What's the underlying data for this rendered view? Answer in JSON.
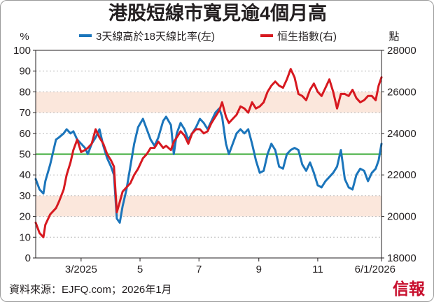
{
  "colors": {
    "breadth": "#1b75bb",
    "hsi": "#d71920",
    "threshold_line": "#3aaa35",
    "band": "#fbe7dc",
    "grid": "#b9b9b9",
    "axis": "#231f20",
    "brand": "#c8102e"
  },
  "chart_data": {
    "type": "line",
    "title": "港股短線市寬見逾4個月高",
    "left_axis": {
      "unit_label": "%",
      "ylim": [
        0,
        100
      ],
      "ticks": [
        "0",
        "10",
        "20",
        "30",
        "40",
        "50",
        "60",
        "70",
        "80",
        "90",
        "100"
      ]
    },
    "right_axis": {
      "unit_label": "點",
      "ylim": [
        18000,
        28000
      ],
      "ticks": [
        "18000",
        "20000",
        "22000",
        "24000",
        "26000",
        "28000"
      ]
    },
    "x_axis": {
      "range": [
        "2025-01-13",
        "2026-01-06"
      ],
      "tick_labels": [
        {
          "date": "2025-03-01",
          "label": "3/2025"
        },
        {
          "date": "2025-05-01",
          "label": "5"
        },
        {
          "date": "2025-07-01",
          "label": "7"
        },
        {
          "date": "2025-09-01",
          "label": "9"
        },
        {
          "date": "2025-11-01",
          "label": "11"
        },
        {
          "date": "2026-01-06",
          "label": "6/1/2026"
        }
      ]
    },
    "bands_pct": [
      [
        70,
        80
      ],
      [
        20,
        30
      ]
    ],
    "threshold_pct": 50,
    "grid": "dashed horizontal",
    "legend_position": "top",
    "series": [
      {
        "name": "3天線高於18天線比率(左)",
        "axis": "left",
        "color": "#1b75bb",
        "points": [
          [
            "2025-01-13",
            38
          ],
          [
            "2025-01-17",
            33
          ],
          [
            "2025-01-21",
            31
          ],
          [
            "2025-01-23",
            37
          ],
          [
            "2025-01-28",
            45
          ],
          [
            "2025-02-03",
            57
          ],
          [
            "2025-02-06",
            58
          ],
          [
            "2025-02-11",
            60
          ],
          [
            "2025-02-14",
            62
          ],
          [
            "2025-02-18",
            60
          ],
          [
            "2025-02-21",
            61
          ],
          [
            "2025-02-25",
            57
          ],
          [
            "2025-03-01",
            55
          ],
          [
            "2025-03-05",
            53
          ],
          [
            "2025-03-08",
            50
          ],
          [
            "2025-03-12",
            55
          ],
          [
            "2025-03-16",
            58
          ],
          [
            "2025-03-20",
            62
          ],
          [
            "2025-03-24",
            54
          ],
          [
            "2025-03-28",
            48
          ],
          [
            "2025-04-01",
            44
          ],
          [
            "2025-04-04",
            40
          ],
          [
            "2025-04-07",
            19
          ],
          [
            "2025-04-10",
            17
          ],
          [
            "2025-04-13",
            25
          ],
          [
            "2025-04-17",
            33
          ],
          [
            "2025-04-21",
            44
          ],
          [
            "2025-04-25",
            55
          ],
          [
            "2025-04-29",
            63
          ],
          [
            "2025-05-04",
            67
          ],
          [
            "2025-05-08",
            62
          ],
          [
            "2025-05-12",
            57
          ],
          [
            "2025-05-16",
            54
          ],
          [
            "2025-05-20",
            58
          ],
          [
            "2025-05-25",
            66
          ],
          [
            "2025-05-28",
            68
          ],
          [
            "2025-06-02",
            64
          ],
          [
            "2025-06-05",
            50
          ],
          [
            "2025-06-08",
            60
          ],
          [
            "2025-06-12",
            65
          ],
          [
            "2025-06-16",
            62
          ],
          [
            "2025-06-20",
            57
          ],
          [
            "2025-06-24",
            60
          ],
          [
            "2025-06-28",
            63
          ],
          [
            "2025-07-02",
            67
          ],
          [
            "2025-07-06",
            65
          ],
          [
            "2025-07-10",
            62
          ],
          [
            "2025-07-14",
            66
          ],
          [
            "2025-07-18",
            70
          ],
          [
            "2025-07-22",
            72
          ],
          [
            "2025-07-25",
            68
          ],
          [
            "2025-07-29",
            55
          ],
          [
            "2025-08-01",
            50
          ],
          [
            "2025-08-05",
            55
          ],
          [
            "2025-08-09",
            60
          ],
          [
            "2025-08-13",
            62
          ],
          [
            "2025-08-17",
            60
          ],
          [
            "2025-08-21",
            62
          ],
          [
            "2025-08-25",
            55
          ],
          [
            "2025-08-29",
            47
          ],
          [
            "2025-09-02",
            41
          ],
          [
            "2025-09-06",
            42
          ],
          [
            "2025-09-10",
            50
          ],
          [
            "2025-09-14",
            55
          ],
          [
            "2025-09-18",
            52
          ],
          [
            "2025-09-22",
            44
          ],
          [
            "2025-09-26",
            43
          ],
          [
            "2025-09-30",
            50
          ],
          [
            "2025-10-04",
            52
          ],
          [
            "2025-10-08",
            53
          ],
          [
            "2025-10-12",
            52
          ],
          [
            "2025-10-16",
            45
          ],
          [
            "2025-10-20",
            42
          ],
          [
            "2025-10-24",
            46
          ],
          [
            "2025-10-28",
            41
          ],
          [
            "2025-11-01",
            35
          ],
          [
            "2025-11-05",
            34
          ],
          [
            "2025-11-09",
            37
          ],
          [
            "2025-11-13",
            39
          ],
          [
            "2025-11-17",
            41
          ],
          [
            "2025-11-21",
            44
          ],
          [
            "2025-11-25",
            52
          ],
          [
            "2025-11-29",
            38
          ],
          [
            "2025-12-03",
            34
          ],
          [
            "2025-12-07",
            33
          ],
          [
            "2025-12-11",
            40
          ],
          [
            "2025-12-15",
            43
          ],
          [
            "2025-12-19",
            42
          ],
          [
            "2025-12-23",
            37
          ],
          [
            "2025-12-27",
            41
          ],
          [
            "2025-12-31",
            43
          ],
          [
            "2026-01-03",
            47
          ],
          [
            "2026-01-06",
            55
          ]
        ]
      },
      {
        "name": "恒生指數(右)",
        "axis": "right",
        "color": "#d71920",
        "points": [
          [
            "2025-01-13",
            19700
          ],
          [
            "2025-01-17",
            19200
          ],
          [
            "2025-01-21",
            19000
          ],
          [
            "2025-01-23",
            19600
          ],
          [
            "2025-01-28",
            20100
          ],
          [
            "2025-02-03",
            20400
          ],
          [
            "2025-02-06",
            20700
          ],
          [
            "2025-02-11",
            21300
          ],
          [
            "2025-02-14",
            22000
          ],
          [
            "2025-02-18",
            22600
          ],
          [
            "2025-02-21",
            23200
          ],
          [
            "2025-02-25",
            23700
          ],
          [
            "2025-03-01",
            23100
          ],
          [
            "2025-03-05",
            23200
          ],
          [
            "2025-03-08",
            23300
          ],
          [
            "2025-03-12",
            23500
          ],
          [
            "2025-03-16",
            24200
          ],
          [
            "2025-03-20",
            23800
          ],
          [
            "2025-03-24",
            23500
          ],
          [
            "2025-03-28",
            23000
          ],
          [
            "2025-04-01",
            22700
          ],
          [
            "2025-04-04",
            22400
          ],
          [
            "2025-04-07",
            20200
          ],
          [
            "2025-04-10",
            20700
          ],
          [
            "2025-04-13",
            21200
          ],
          [
            "2025-04-17",
            21400
          ],
          [
            "2025-04-21",
            21600
          ],
          [
            "2025-04-25",
            22000
          ],
          [
            "2025-04-29",
            22300
          ],
          [
            "2025-05-04",
            22800
          ],
          [
            "2025-05-08",
            23000
          ],
          [
            "2025-05-12",
            23300
          ],
          [
            "2025-05-16",
            23300
          ],
          [
            "2025-05-20",
            23600
          ],
          [
            "2025-05-25",
            23300
          ],
          [
            "2025-05-28",
            23400
          ],
          [
            "2025-06-02",
            23200
          ],
          [
            "2025-06-05",
            23600
          ],
          [
            "2025-06-08",
            23800
          ],
          [
            "2025-06-12",
            24100
          ],
          [
            "2025-06-16",
            23900
          ],
          [
            "2025-06-20",
            23500
          ],
          [
            "2025-06-24",
            24000
          ],
          [
            "2025-06-28",
            24200
          ],
          [
            "2025-07-02",
            24200
          ],
          [
            "2025-07-06",
            24000
          ],
          [
            "2025-07-10",
            24100
          ],
          [
            "2025-07-14",
            24500
          ],
          [
            "2025-07-18",
            24800
          ],
          [
            "2025-07-22",
            25100
          ],
          [
            "2025-07-25",
            25500
          ],
          [
            "2025-07-29",
            24800
          ],
          [
            "2025-08-01",
            24500
          ],
          [
            "2025-08-05",
            24700
          ],
          [
            "2025-08-09",
            24900
          ],
          [
            "2025-08-13",
            25300
          ],
          [
            "2025-08-17",
            25200
          ],
          [
            "2025-08-21",
            25000
          ],
          [
            "2025-08-25",
            25500
          ],
          [
            "2025-08-29",
            25200
          ],
          [
            "2025-09-02",
            25300
          ],
          [
            "2025-09-06",
            25500
          ],
          [
            "2025-09-10",
            26000
          ],
          [
            "2025-09-14",
            26300
          ],
          [
            "2025-09-18",
            26500
          ],
          [
            "2025-09-22",
            26300
          ],
          [
            "2025-09-26",
            26200
          ],
          [
            "2025-09-30",
            26600
          ],
          [
            "2025-10-04",
            27100
          ],
          [
            "2025-10-08",
            26700
          ],
          [
            "2025-10-12",
            25900
          ],
          [
            "2025-10-16",
            25800
          ],
          [
            "2025-10-20",
            25600
          ],
          [
            "2025-10-24",
            26100
          ],
          [
            "2025-10-28",
            26400
          ],
          [
            "2025-11-01",
            26000
          ],
          [
            "2025-11-05",
            25800
          ],
          [
            "2025-11-09",
            26200
          ],
          [
            "2025-11-13",
            26600
          ],
          [
            "2025-11-17",
            26000
          ],
          [
            "2025-11-21",
            25200
          ],
          [
            "2025-11-25",
            25900
          ],
          [
            "2025-11-29",
            25900
          ],
          [
            "2025-12-03",
            25800
          ],
          [
            "2025-12-07",
            26100
          ],
          [
            "2025-12-11",
            25700
          ],
          [
            "2025-12-15",
            25500
          ],
          [
            "2025-12-19",
            25600
          ],
          [
            "2025-12-23",
            25800
          ],
          [
            "2025-12-27",
            25800
          ],
          [
            "2025-12-31",
            25600
          ],
          [
            "2026-01-03",
            26300
          ],
          [
            "2026-01-06",
            26700
          ]
        ]
      }
    ]
  },
  "source": "資料來源：EJFQ.com；2026年1月",
  "brand": "信報"
}
